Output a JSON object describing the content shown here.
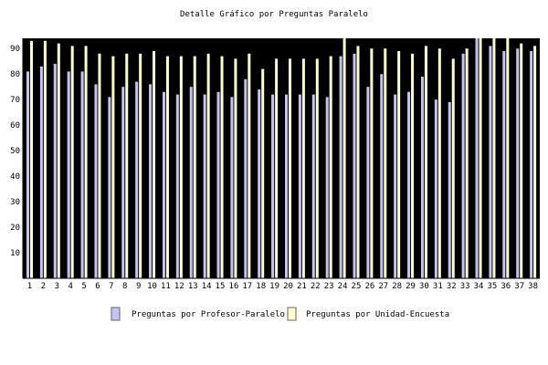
{
  "chart_data": {
    "type": "bar",
    "title": "Detalle Gráfico por Preguntas Paralelo",
    "xlabel": "",
    "ylabel": "",
    "ylim": [
      0,
      94
    ],
    "yticks": [
      10,
      20,
      30,
      40,
      50,
      60,
      70,
      80,
      90
    ],
    "grid": false,
    "legend_position": "bottom",
    "categories": [
      "1",
      "2",
      "3",
      "4",
      "5",
      "6",
      "7",
      "8",
      "9",
      "10",
      "11",
      "12",
      "13",
      "14",
      "15",
      "16",
      "17",
      "18",
      "19",
      "20",
      "21",
      "22",
      "23",
      "24",
      "25",
      "26",
      "27",
      "28",
      "29",
      "30",
      "31",
      "32",
      "33",
      "34",
      "35",
      "36",
      "37",
      "38"
    ],
    "series": [
      {
        "name": "Preguntas por Profesor-Paralelo",
        "color": "#c4c4f2",
        "values": [
          81,
          83,
          84,
          81,
          81,
          76,
          71,
          75,
          77,
          76,
          73,
          72,
          75,
          72,
          73,
          71,
          78,
          74,
          72,
          72,
          72,
          72,
          71,
          87,
          88,
          75,
          80,
          72,
          73,
          79,
          70,
          69,
          88,
          94,
          91,
          89,
          90,
          89
        ]
      },
      {
        "name": "Preguntas por Unidad-Encuesta",
        "color": "#ffffcc",
        "values": [
          93,
          93,
          92,
          91,
          91,
          88,
          87,
          88,
          88,
          89,
          87,
          87,
          87,
          88,
          87,
          86,
          88,
          82,
          86,
          86,
          86,
          86,
          87,
          94,
          91,
          90,
          90,
          89,
          88,
          91,
          90,
          86,
          90,
          94,
          94,
          94,
          92,
          91
        ]
      }
    ]
  },
  "colors": {
    "plot_background": "#000000",
    "page_background": "#ffffff"
  }
}
